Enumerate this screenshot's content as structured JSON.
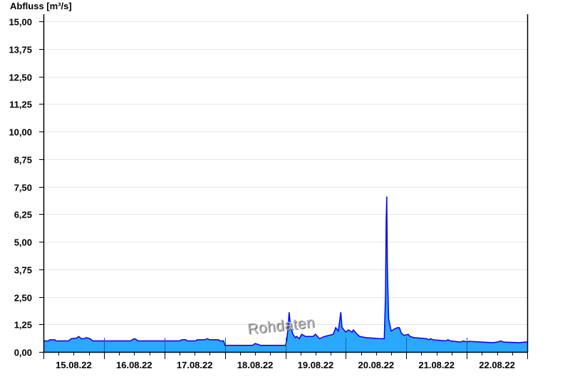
{
  "chart_data": {
    "type": "area",
    "title": "",
    "ylabel": "Abfluss [m³/s]",
    "xlabel": "",
    "ylim": [
      0,
      15
    ],
    "xlim": [
      "15.08.22 00:00",
      "23.08.22 00:00"
    ],
    "grid": "horizontal",
    "yticks": [
      "0,00",
      "1,25",
      "2,50",
      "3,75",
      "5,00",
      "6,25",
      "7,50",
      "8,75",
      "10,00",
      "11,25",
      "12,50",
      "13,75",
      "15,00"
    ],
    "xticks": [
      "15.08.22",
      "16.08.22",
      "17.08.22",
      "18.08.22",
      "19.08.22",
      "20.08.22",
      "21.08.22",
      "22.08.22"
    ],
    "colors": {
      "fill": "#2aa9fc",
      "line": "#0000ff",
      "grid": "#e6e6e6"
    },
    "series": [
      {
        "points": [
          [
            "15.08 00:00",
            0.5
          ],
          [
            "15.08 02:00",
            0.5
          ],
          [
            "15.08 02:30",
            0.55
          ],
          [
            "15.08 04:30",
            0.55
          ],
          [
            "15.08 05:00",
            0.5
          ],
          [
            "15.08 10:00",
            0.5
          ],
          [
            "15.08 11:00",
            0.6
          ],
          [
            "15.08 13:00",
            0.62
          ],
          [
            "15.08 14:00",
            0.7
          ],
          [
            "15.08 15:00",
            0.6
          ],
          [
            "15.08 16:00",
            0.6
          ],
          [
            "15.08 17:00",
            0.65
          ],
          [
            "15.08 18:30",
            0.6
          ],
          [
            "15.08 19:30",
            0.5
          ],
          [
            "16.08 10:30",
            0.5
          ],
          [
            "16.08 12:00",
            0.6
          ],
          [
            "16.08 13:00",
            0.55
          ],
          [
            "16.08 13:30",
            0.5
          ],
          [
            "17.08 06:00",
            0.5
          ],
          [
            "17.08 07:00",
            0.55
          ],
          [
            "17.08 08:30",
            0.55
          ],
          [
            "17.08 09:00",
            0.5
          ],
          [
            "17.08 12:30",
            0.5
          ],
          [
            "17.08 13:00",
            0.55
          ],
          [
            "17.08 16:00",
            0.55
          ],
          [
            "17.08 17:00",
            0.6
          ],
          [
            "17.08 18:00",
            0.55
          ],
          [
            "17.08 21:30",
            0.55
          ],
          [
            "17.08 22:00",
            0.5
          ],
          [
            "17.08 23:30",
            0.5
          ],
          [
            "18.08 00:00",
            0.3
          ],
          [
            "18.08 11:00",
            0.3
          ],
          [
            "18.08 12:00",
            0.38
          ],
          [
            "18.08 13:30",
            0.33
          ],
          [
            "18.08 14:00",
            0.3
          ],
          [
            "19.08 00:00",
            0.3
          ],
          [
            "19.08 00:30",
            0.5
          ],
          [
            "19.08 01:00",
            1.0
          ],
          [
            "19.08 01:30",
            1.8
          ],
          [
            "19.08 02:00",
            1.2
          ],
          [
            "19.08 03:00",
            0.8
          ],
          [
            "19.08 04:00",
            0.65
          ],
          [
            "19.08 04:30",
            0.7
          ],
          [
            "19.08 05:30",
            0.6
          ],
          [
            "19.08 06:30",
            0.8
          ],
          [
            "19.08 08:00",
            0.7
          ],
          [
            "19.08 11:00",
            0.7
          ],
          [
            "19.08 12:00",
            0.8
          ],
          [
            "19.08 13:30",
            0.6
          ],
          [
            "19.08 15:30",
            0.7
          ],
          [
            "19.08 19:00",
            0.8
          ],
          [
            "19.08 20:00",
            1.1
          ],
          [
            "19.08 21:00",
            0.95
          ],
          [
            "19.08 22:00",
            1.8
          ],
          [
            "19.08 22:30",
            1.1
          ],
          [
            "20.08 00:00",
            0.9
          ],
          [
            "20.08 01:00",
            1.0
          ],
          [
            "20.08 02:30",
            0.9
          ],
          [
            "20.08 03:00",
            1.0
          ],
          [
            "20.08 04:30",
            0.8
          ],
          [
            "20.08 05:30",
            0.7
          ],
          [
            "20.08 08:00",
            0.65
          ],
          [
            "20.08 13:30",
            0.6
          ],
          [
            "20.08 15:15",
            0.6
          ],
          [
            "20.08 15:45",
            2.6
          ],
          [
            "20.08 16:00",
            5.9
          ],
          [
            "20.08 16:15",
            7.05
          ],
          [
            "20.08 16:30",
            3.8
          ],
          [
            "20.08 17:00",
            1.5
          ],
          [
            "20.08 18:00",
            0.95
          ],
          [
            "20.08 19:30",
            1.05
          ],
          [
            "20.08 20:30",
            1.1
          ],
          [
            "20.08 21:15",
            1.1
          ],
          [
            "20.08 22:00",
            0.85
          ],
          [
            "20.08 23:00",
            0.75
          ],
          [
            "21.08 00:45",
            0.8
          ],
          [
            "21.08 01:30",
            0.7
          ],
          [
            "21.08 03:00",
            0.65
          ],
          [
            "21.08 08:00",
            0.6
          ],
          [
            "21.08 09:00",
            0.55
          ],
          [
            "21.08 09:45",
            0.6
          ],
          [
            "21.08 10:30",
            0.55
          ],
          [
            "21.08 15:45",
            0.5
          ],
          [
            "21.08 16:30",
            0.55
          ],
          [
            "21.08 17:30",
            0.5
          ],
          [
            "21.08 21:30",
            0.45
          ],
          [
            "21.08 22:45",
            0.5
          ],
          [
            "22.08 00:00",
            0.45
          ],
          [
            "22.08 01:00",
            0.48
          ],
          [
            "22.08 10:15",
            0.42
          ],
          [
            "22.08 12:15",
            0.45
          ],
          [
            "22.08 13:30",
            0.5
          ],
          [
            "22.08 14:30",
            0.45
          ],
          [
            "22.08 20:45",
            0.42
          ],
          [
            "22.08 23:00",
            0.45
          ],
          [
            "23.08 00:00",
            0.45
          ]
        ]
      }
    ]
  },
  "watermark": "Rohdaten"
}
